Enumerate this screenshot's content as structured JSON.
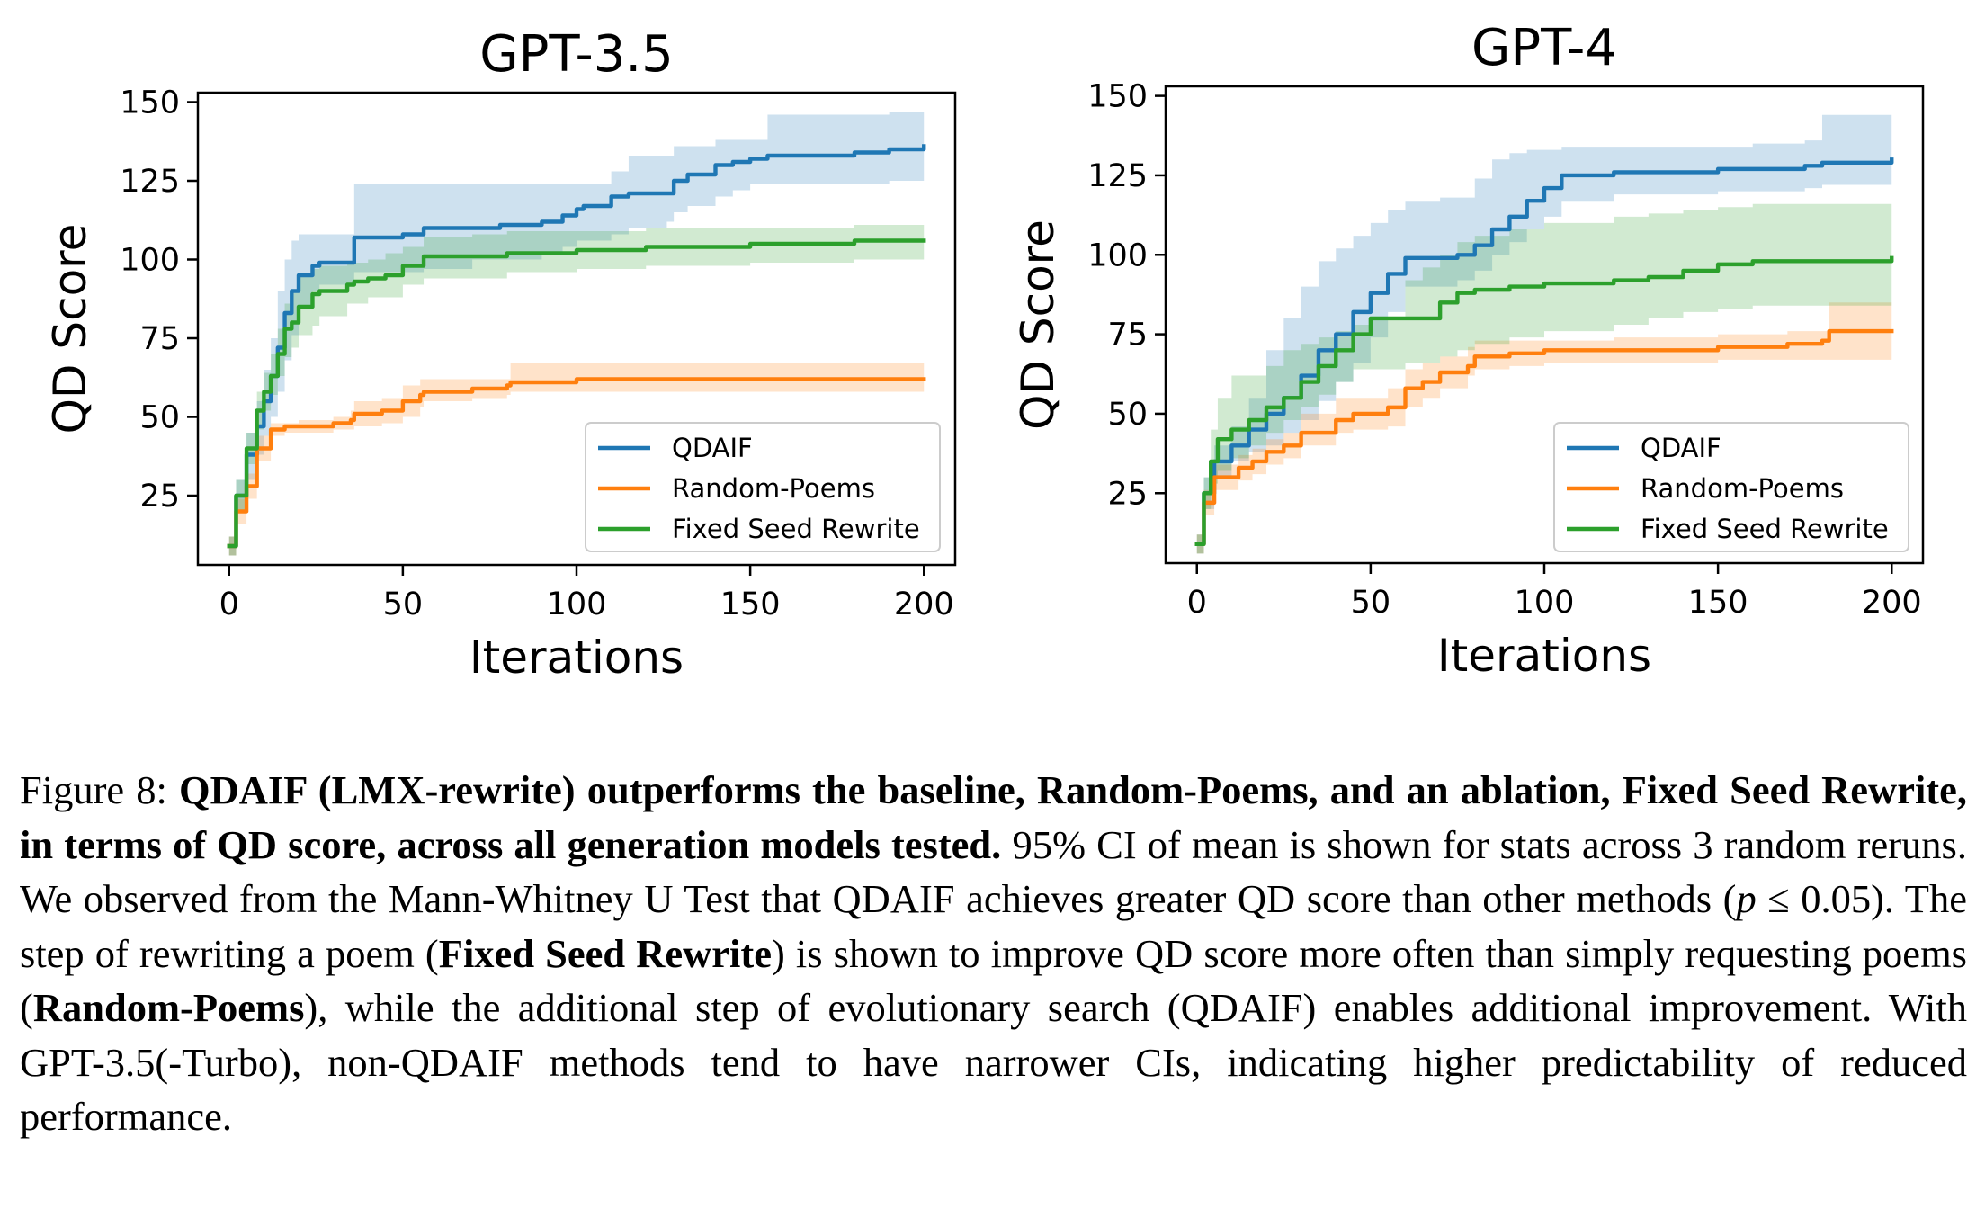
{
  "chart_data": [
    {
      "type": "line",
      "title": "GPT-3.5",
      "xlabel": "Iterations",
      "ylabel": "QD Score",
      "xlim": [
        -9,
        209
      ],
      "ylim": [
        3,
        153
      ],
      "xticks": [
        0,
        50,
        100,
        150,
        200
      ],
      "yticks": [
        25,
        50,
        75,
        100,
        125,
        150
      ],
      "grid": false,
      "legend_position": "lower-right",
      "confidence_band": "95% CI",
      "series": [
        {
          "name": "QDAIF",
          "color": "#1f77b4",
          "x": [
            0,
            2,
            5,
            8,
            10,
            12,
            14,
            16,
            18,
            20,
            24,
            26,
            30,
            34,
            36,
            40,
            50,
            56,
            70,
            78,
            85,
            90,
            96,
            100,
            102,
            110,
            115,
            126,
            128,
            132,
            140,
            145,
            150,
            155,
            160,
            180,
            190,
            200
          ],
          "y": [
            9,
            25,
            38,
            47,
            55,
            63,
            72,
            83,
            90,
            95,
            98,
            99,
            99,
            99,
            107,
            107,
            108,
            110,
            110,
            111,
            111,
            112,
            114,
            116,
            117,
            120,
            121,
            121,
            125,
            127,
            130,
            131,
            132,
            133,
            133,
            134,
            135,
            136
          ],
          "upper": [
            12,
            30,
            45,
            55,
            65,
            75,
            90,
            100,
            106,
            108,
            108,
            108,
            108,
            108,
            124,
            124,
            124,
            124,
            124,
            124,
            124,
            124,
            124,
            124,
            124,
            128,
            133,
            133,
            136,
            136,
            138,
            138,
            138,
            146,
            146,
            146,
            147,
            147
          ],
          "lower": [
            6,
            20,
            30,
            38,
            44,
            50,
            58,
            68,
            76,
            85,
            90,
            92,
            92,
            92,
            96,
            96,
            96,
            97,
            100,
            100,
            100,
            102,
            104,
            106,
            106,
            108,
            110,
            112,
            115,
            117,
            120,
            122,
            124,
            124,
            124,
            124,
            125,
            125
          ]
        },
        {
          "name": "Random-Poems",
          "color": "#ff7f0e",
          "x": [
            0,
            2,
            5,
            8,
            12,
            16,
            20,
            30,
            35,
            36,
            44,
            50,
            55,
            56,
            70,
            80,
            81,
            100,
            120,
            150,
            200
          ],
          "y": [
            9,
            20,
            28,
            40,
            46,
            47,
            47,
            48,
            49,
            51,
            52,
            55,
            57,
            58,
            59,
            60,
            61,
            62,
            62,
            62,
            62
          ],
          "upper": [
            12,
            24,
            32,
            44,
            48,
            48,
            49,
            50,
            52,
            55,
            56,
            60,
            62,
            62,
            62,
            62,
            67,
            67,
            67,
            67,
            67
          ],
          "lower": [
            6,
            16,
            24,
            36,
            44,
            45,
            45,
            46,
            46,
            47,
            48,
            50,
            53,
            55,
            56,
            57,
            58,
            58,
            58,
            58,
            58
          ]
        },
        {
          "name": "Fixed Seed Rewrite",
          "color": "#2ca02c",
          "x": [
            0,
            2,
            5,
            8,
            10,
            12,
            14,
            16,
            18,
            20,
            24,
            26,
            30,
            34,
            36,
            40,
            45,
            50,
            56,
            60,
            70,
            80,
            100,
            120,
            150,
            180,
            200
          ],
          "y": [
            9,
            25,
            40,
            52,
            58,
            63,
            70,
            78,
            80,
            85,
            89,
            90,
            90,
            92,
            93,
            94,
            95,
            98,
            101,
            101,
            101,
            102,
            103,
            104,
            105,
            106,
            106
          ],
          "upper": [
            12,
            30,
            45,
            58,
            64,
            70,
            78,
            86,
            90,
            95,
            97,
            98,
            98,
            99,
            99,
            100,
            102,
            104,
            107,
            107,
            108,
            109,
            109,
            110,
            110,
            111,
            111
          ],
          "lower": [
            6,
            20,
            35,
            46,
            52,
            57,
            63,
            69,
            72,
            76,
            79,
            82,
            82,
            86,
            86,
            88,
            88,
            92,
            94,
            94,
            94,
            96,
            97,
            98,
            99,
            100,
            101
          ]
        }
      ]
    },
    {
      "type": "line",
      "title": "GPT-4",
      "xlabel": "Iterations",
      "ylabel": "QD Score",
      "xlim": [
        -9,
        209
      ],
      "ylim": [
        3,
        153
      ],
      "xticks": [
        0,
        50,
        100,
        150,
        200
      ],
      "yticks": [
        25,
        50,
        75,
        100,
        125,
        150
      ],
      "grid": false,
      "legend_position": "lower-right",
      "confidence_band": "95% CI",
      "series": [
        {
          "name": "QDAIF",
          "color": "#1f77b4",
          "x": [
            0,
            2,
            5,
            10,
            15,
            20,
            25,
            30,
            35,
            40,
            45,
            50,
            55,
            60,
            70,
            75,
            80,
            85,
            90,
            95,
            100,
            105,
            120,
            150,
            160,
            175,
            180,
            200
          ],
          "y": [
            9,
            25,
            35,
            40,
            45,
            50,
            55,
            62,
            70,
            75,
            82,
            88,
            94,
            99,
            99,
            100,
            103,
            108,
            112,
            117,
            121,
            125,
            126,
            127,
            127,
            128,
            129,
            130
          ],
          "upper": [
            12,
            30,
            40,
            46,
            55,
            70,
            80,
            90,
            98,
            102,
            106,
            110,
            114,
            117,
            118,
            118,
            124,
            130,
            132,
            133,
            133,
            134,
            134,
            134,
            135,
            136,
            144,
            145
          ],
          "lower": [
            6,
            20,
            30,
            35,
            38,
            40,
            44,
            48,
            54,
            60,
            66,
            74,
            82,
            90,
            90,
            92,
            95,
            100,
            104,
            108,
            112,
            117,
            119,
            120,
            120,
            121,
            122,
            122
          ]
        },
        {
          "name": "Random-Poems",
          "color": "#ff7f0e",
          "x": [
            0,
            2,
            5,
            8,
            12,
            16,
            20,
            25,
            30,
            40,
            45,
            50,
            55,
            60,
            65,
            70,
            78,
            80,
            90,
            100,
            120,
            150,
            170,
            180,
            182,
            200
          ],
          "y": [
            9,
            22,
            30,
            30,
            33,
            35,
            38,
            40,
            44,
            48,
            50,
            50,
            52,
            58,
            60,
            63,
            65,
            68,
            69,
            70,
            70,
            71,
            72,
            73,
            76,
            76
          ],
          "upper": [
            12,
            26,
            34,
            34,
            37,
            39,
            42,
            44,
            50,
            55,
            55,
            55,
            58,
            64,
            66,
            68,
            71,
            73,
            73,
            73,
            74,
            75,
            76,
            76,
            85,
            85
          ],
          "lower": [
            6,
            18,
            26,
            26,
            29,
            31,
            34,
            36,
            40,
            44,
            45,
            45,
            46,
            52,
            55,
            58,
            62,
            64,
            65,
            66,
            66,
            67,
            67,
            67,
            67,
            67
          ]
        },
        {
          "name": "Fixed Seed Rewrite",
          "color": "#2ca02c",
          "x": [
            0,
            2,
            4,
            6,
            10,
            15,
            20,
            25,
            30,
            35,
            40,
            45,
            50,
            55,
            60,
            65,
            70,
            75,
            80,
            85,
            90,
            100,
            120,
            130,
            140,
            150,
            160,
            200
          ],
          "y": [
            9,
            25,
            35,
            42,
            45,
            48,
            52,
            55,
            60,
            65,
            70,
            75,
            80,
            80,
            80,
            80,
            85,
            88,
            89,
            89,
            90,
            91,
            92,
            93,
            95,
            97,
            98,
            99
          ],
          "upper": [
            12,
            30,
            45,
            55,
            62,
            62,
            65,
            70,
            72,
            74,
            76,
            78,
            80,
            80,
            92,
            96,
            100,
            104,
            106,
            106,
            108,
            110,
            112,
            113,
            114,
            115,
            116,
            116
          ],
          "lower": [
            6,
            20,
            28,
            32,
            36,
            40,
            44,
            48,
            52,
            56,
            60,
            64,
            64,
            64,
            66,
            66,
            68,
            70,
            72,
            72,
            74,
            76,
            78,
            80,
            82,
            83,
            84,
            84
          ]
        }
      ]
    }
  ],
  "caption": {
    "figure_label": "Figure 8:",
    "bold_statement": "QDAIF (LMX-rewrite) outperforms the baseline, Random-Poems, and an ablation, Fixed Seed Rewrite, in terms of QD score, across all generation models tested.",
    "text_part1": "95% CI of mean is shown for stats across 3 random reruns. We observed from the Mann-Whitney U Test that QDAIF achieves greater QD score than other methods (",
    "math_p": "p",
    "math_rest": " ≤ 0.05",
    "text_part2": "). The step of rewriting a poem (",
    "bold_fixed": "Fixed Seed Rewrite",
    "text_part3": ") is shown to improve QD score more often than simply requesting poems (",
    "bold_random": "Random-Poems",
    "text_part4": "), while the additional step of evolutionary search (QDAIF) enables additional improvement. With GPT-3.5(-Turbo), non-QDAIF methods tend to have narrower CIs, indicating higher predictability of reduced performance."
  }
}
